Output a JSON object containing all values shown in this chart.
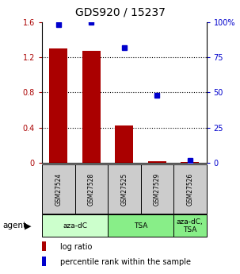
{
  "title": "GDS920 / 15237",
  "samples": [
    "GSM27524",
    "GSM27528",
    "GSM27525",
    "GSM27529",
    "GSM27526"
  ],
  "log_ratios": [
    1.3,
    1.27,
    0.43,
    0.02,
    0.01
  ],
  "percentile_ranks": [
    98.0,
    100.0,
    82.0,
    48.0,
    2.0
  ],
  "ylim_left": [
    0,
    1.6
  ],
  "ylim_right": [
    0,
    100
  ],
  "yticks_left": [
    0,
    0.4,
    0.8,
    1.2,
    1.6
  ],
  "yticks_right": [
    0,
    25,
    50,
    75,
    100
  ],
  "ytick_labels_left": [
    "0",
    "0.4",
    "0.8",
    "1.2",
    "1.6"
  ],
  "ytick_labels_right": [
    "0",
    "25",
    "50",
    "75",
    "100%"
  ],
  "bar_color": "#aa0000",
  "dot_color": "#0000cc",
  "agent_groups": [
    {
      "label": "aza-dC",
      "cols": [
        0,
        1
      ],
      "color": "#ccffcc"
    },
    {
      "label": "TSA",
      "cols": [
        2,
        3
      ],
      "color": "#88ee88"
    },
    {
      "label": "aza-dC,\nTSA",
      "cols": [
        4
      ],
      "color": "#88ee88"
    }
  ],
  "agent_label": "agent",
  "legend_red_label": "log ratio",
  "legend_blue_label": "percentile rank within the sample",
  "bar_width": 0.55,
  "background_color": "#ffffff",
  "plot_bg": "#ffffff",
  "sample_box_color": "#cccccc",
  "dotted_grid_vals": [
    0.4,
    0.8,
    1.2
  ]
}
